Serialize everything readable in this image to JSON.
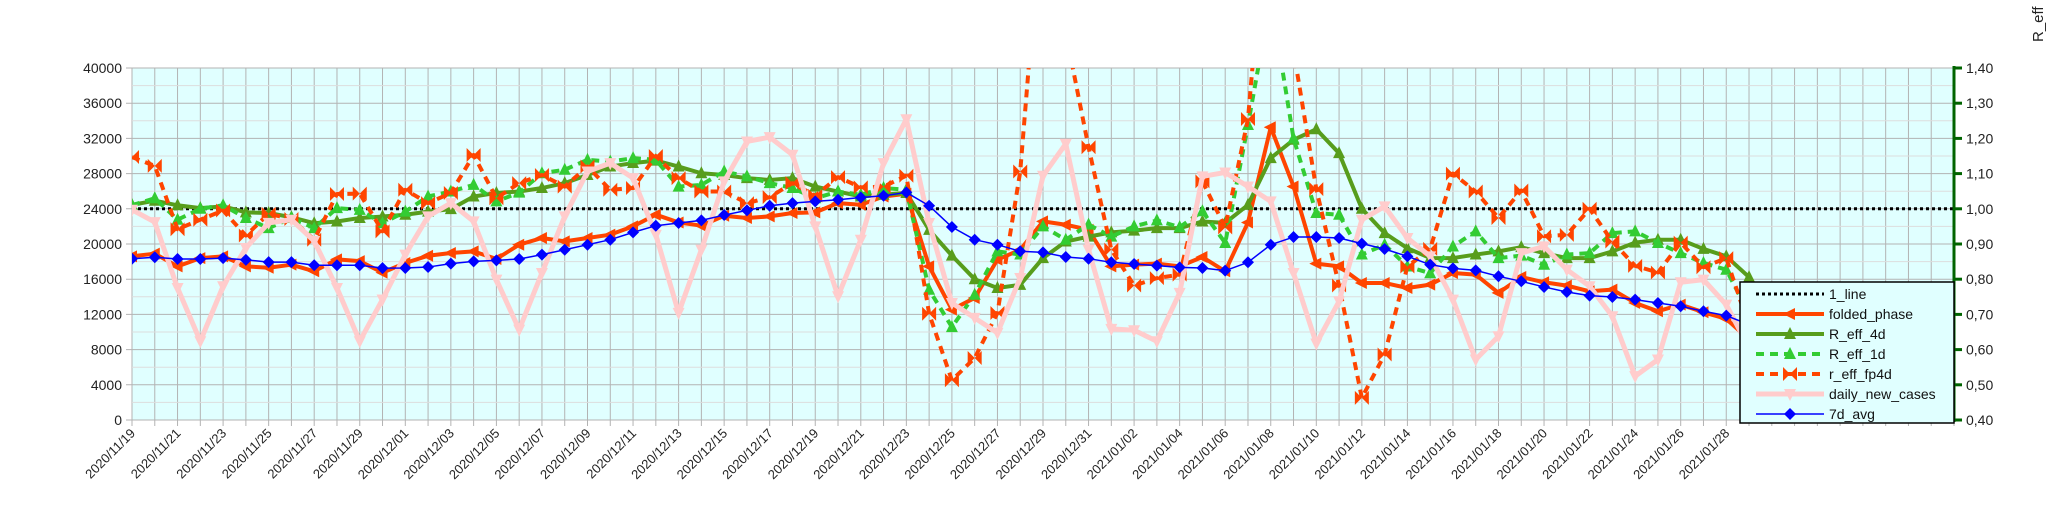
{
  "chart_data": {
    "type": "line",
    "title": "",
    "xlabel": "",
    "ylabel_left": "",
    "ylabel_right": "R_eff",
    "x_start": "2020/11/19",
    "x_days_total": 80,
    "x_tick_labels": [
      "2020/11/19",
      "2020/11/21",
      "2020/11/23",
      "2020/11/25",
      "2020/11/27",
      "2020/11/29",
      "2020/12/01",
      "2020/12/03",
      "2020/12/05",
      "2020/12/07",
      "2020/12/09",
      "2020/12/11",
      "2020/12/13",
      "2020/12/15",
      "2020/12/17",
      "2020/12/19",
      "2020/12/21",
      "2020/12/23",
      "2020/12/25",
      "2020/12/27",
      "2020/12/29",
      "2020/12/31",
      "2021/01/02",
      "2021/01/04",
      "2021/01/06",
      "2021/01/08",
      "2021/01/10",
      "2021/01/12",
      "2021/01/14",
      "2021/01/16",
      "2021/01/18",
      "2021/01/20",
      "2021/01/22",
      "2021/01/24",
      "2021/01/26",
      "2021/01/28"
    ],
    "y_left": {
      "range": [
        0,
        40000
      ],
      "ticks": [
        "0",
        "4000",
        "8000",
        "12000",
        "16000",
        "20000",
        "24000",
        "28000",
        "32000",
        "36000",
        "40000"
      ]
    },
    "y_right": {
      "range": [
        0.4,
        1.4
      ],
      "ticks": [
        "0,40",
        "0,50",
        "0,60",
        "0,70",
        "0,80",
        "0,90",
        "1,00",
        "1,10",
        "1,20",
        "1,30",
        "1,40"
      ]
    },
    "grid": true,
    "legend_position": "bottom-right",
    "series": [
      {
        "name": "1_line",
        "axis": "right",
        "color": "#000000",
        "constant": 1.0
      },
      {
        "name": "folded_phase",
        "axis": "left",
        "color": "#ff4500",
        "marker": "arrow-left",
        "values": [
          18600,
          18900,
          17460,
          18400,
          18600,
          17460,
          17300,
          17650,
          16900,
          18250,
          18050,
          16750,
          17840,
          18670,
          18980,
          19160,
          18300,
          19920,
          20680,
          20300,
          20680,
          21060,
          22000,
          23330,
          22450,
          22080,
          23210,
          22950,
          23140,
          23520,
          23590,
          24650,
          24460,
          25400,
          25710,
          17460,
          12540,
          13870,
          18220,
          19350,
          22570,
          22190,
          21620,
          17460,
          17650,
          17770,
          17460,
          18520,
          16900,
          22450,
          33270,
          26540,
          17770,
          17460,
          15570,
          15570,
          15000,
          15380,
          16710,
          16520,
          14440,
          16250,
          15650,
          15270,
          14630,
          14820,
          13300,
          12360,
          13110,
          12240,
          11490,
          9140
        ]
      },
      {
        "name": "R_eff_4d",
        "axis": "right",
        "color": "#579d1c",
        "marker": "triangle-up",
        "values": [
          1.011,
          1.023,
          1.01,
          1.002,
          1.007,
          0.99,
          0.988,
          0.976,
          0.959,
          0.964,
          0.974,
          0.978,
          0.983,
          0.992,
          0.999,
          1.035,
          1.045,
          1.049,
          1.059,
          1.073,
          1.096,
          1.12,
          1.13,
          1.137,
          1.12,
          1.101,
          1.096,
          1.087,
          1.082,
          1.087,
          1.063,
          1.049,
          1.035,
          1.04,
          1.045,
          0.94,
          0.867,
          0.8,
          0.775,
          0.784,
          0.86,
          0.907,
          0.921,
          0.933,
          0.938,
          0.945,
          0.945,
          0.964,
          0.96,
          1.011,
          1.144,
          1.196,
          1.226,
          1.158,
          1.0,
          0.931,
          0.888,
          0.86,
          0.86,
          0.87,
          0.879,
          0.891,
          0.874,
          0.86,
          0.86,
          0.879,
          0.904,
          0.912,
          0.912,
          0.886,
          0.865,
          0.806
        ]
      },
      {
        "name": "R_eff_1d",
        "axis": "right",
        "color": "#33cc33",
        "marker": "triangle-up",
        "dashed": true,
        "values": [
          1.01,
          1.03,
          0.969,
          1.0,
          1.01,
          0.974,
          0.945,
          0.974,
          0.945,
          1.002,
          0.997,
          0.959,
          0.992,
          1.035,
          1.049,
          1.068,
          1.021,
          1.046,
          1.101,
          1.111,
          1.139,
          1.134,
          1.144,
          1.139,
          1.063,
          1.068,
          1.106,
          1.092,
          1.073,
          1.059,
          1.03,
          1.049,
          1.04,
          1.059,
          1.054,
          0.77,
          0.664,
          0.756,
          0.879,
          0.87,
          0.95,
          0.912,
          0.955,
          0.921,
          0.95,
          0.967,
          0.948,
          0.993,
          0.903,
          1.238,
          1.6,
          1.2,
          0.988,
          0.983,
          0.87,
          0.898,
          0.836,
          0.817,
          0.893,
          0.936,
          0.86,
          0.867,
          0.841,
          0.87,
          0.874,
          0.931,
          0.936,
          0.903,
          0.874,
          0.846,
          0.827,
          0.702
        ]
      },
      {
        "name": "r_eff_fp4d",
        "axis": "right",
        "color": "#ff4500",
        "marker": "bowtie",
        "dashed": true,
        "values": [
          1.147,
          1.122,
          0.942,
          0.969,
          0.995,
          0.924,
          0.986,
          0.971,
          0.912,
          1.042,
          1.043,
          0.936,
          1.054,
          1.016,
          1.045,
          1.153,
          1.03,
          1.073,
          1.096,
          1.063,
          1.12,
          1.054,
          1.059,
          1.15,
          1.087,
          1.049,
          1.049,
          1.016,
          1.033,
          1.073,
          1.037,
          1.09,
          1.061,
          1.063,
          1.094,
          0.702,
          0.513,
          0.576,
          0.704,
          1.106,
          1.9,
          1.5,
          1.175,
          0.884,
          0.782,
          0.803,
          0.813,
          1.078,
          0.947,
          1.255,
          2.0,
          1.45,
          1.056,
          0.782,
          0.463,
          0.586,
          0.836,
          0.886,
          1.1,
          1.049,
          0.974,
          1.052,
          0.922,
          0.926,
          1.0,
          0.907,
          0.838,
          0.819,
          0.904,
          0.834,
          0.86,
          0.666
        ]
      },
      {
        "name": "daily_new_cases",
        "axis": "left",
        "color": "#ffcccc",
        "marker": "triangle-down",
        "values": [
          23890,
          22490,
          15000,
          8950,
          15200,
          19550,
          22400,
          22760,
          20340,
          15000,
          8950,
          13700,
          18790,
          23140,
          24650,
          22570,
          15950,
          10270,
          16710,
          23140,
          28240,
          29190,
          27490,
          21050,
          12170,
          19350,
          27110,
          31650,
          32140,
          30140,
          22000,
          14060,
          20490,
          29190,
          34180,
          22380,
          13300,
          11600,
          9900,
          16140,
          27750,
          31380,
          19350,
          10350,
          10200,
          8950,
          14440,
          27680,
          28130,
          26540,
          24840,
          16710,
          8690,
          13490,
          22760,
          24270,
          20680,
          18600,
          13680,
          6870,
          9520,
          18970,
          19730,
          17090,
          15200,
          11790,
          4980,
          6870,
          15650,
          15950,
          13110,
          8190
        ]
      },
      {
        "name": "7d_avg",
        "axis": "left",
        "color": "#0000ff",
        "marker": "diamond",
        "values": [
          18330,
          18500,
          18300,
          18300,
          18400,
          18200,
          17940,
          17940,
          17580,
          17580,
          17580,
          17260,
          17270,
          17380,
          17770,
          18030,
          18140,
          18300,
          18790,
          19350,
          19920,
          20490,
          21320,
          22080,
          22380,
          22680,
          23290,
          23820,
          24350,
          24650,
          24840,
          25030,
          25290,
          25480,
          25860,
          24350,
          21930,
          20490,
          19920,
          19170,
          19050,
          18520,
          18330,
          17920,
          17730,
          17540,
          17350,
          17270,
          16970,
          17920,
          19920,
          20790,
          20790,
          20680,
          20040,
          19430,
          18600,
          17650,
          17230,
          17000,
          16330,
          15760,
          15120,
          14550,
          14130,
          13980,
          13680,
          13300,
          12920,
          12360,
          11860,
          10840
        ]
      }
    ]
  },
  "colors": {
    "plot_bg": "#e0ffff",
    "grid_major": "#b3b3b3",
    "grid_minor": "#dddddd",
    "right_axis": "#006400"
  }
}
